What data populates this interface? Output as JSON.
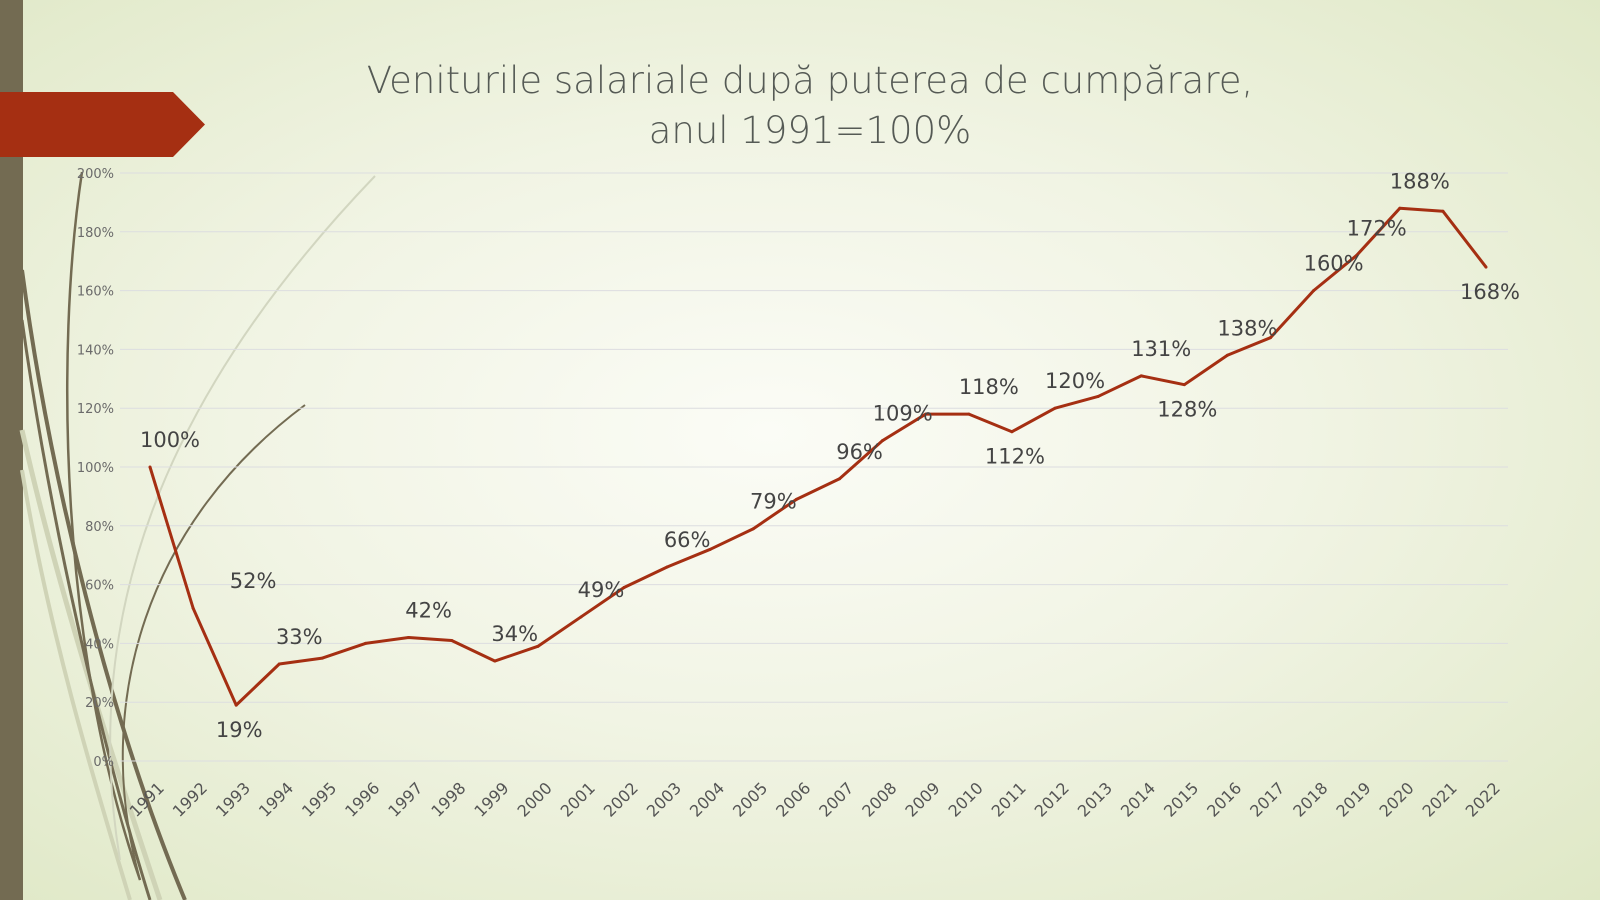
{
  "slide": {
    "colors": {
      "sidebar": "#736b52",
      "banner": "#a52f12",
      "line": "#a52f12",
      "text": "#555a55"
    }
  },
  "chart_data": {
    "type": "line",
    "title": [
      "Veniturile salariale după puterea de cumpărare,",
      "anul 1991=100%"
    ],
    "xlabel": "",
    "ylabel": "",
    "ylim": [
      0,
      200
    ],
    "y_ticks": [
      "0%",
      "20%",
      "40%",
      "60%",
      "80%",
      "100%",
      "120%",
      "140%",
      "160%",
      "180%",
      "200%"
    ],
    "grid": true,
    "legend": "none",
    "categories": [
      "1991",
      "1992",
      "1993",
      "1994",
      "1995",
      "1996",
      "1997",
      "1998",
      "1999",
      "2000",
      "2001",
      "2002",
      "2003",
      "2004",
      "2005",
      "2006",
      "2007",
      "2008",
      "2009",
      "2010",
      "2011",
      "2012",
      "2013",
      "2014",
      "2015",
      "2016",
      "2017",
      "2018",
      "2019",
      "2020",
      "2021",
      "2022"
    ],
    "values": [
      100,
      52,
      19,
      33,
      35,
      40,
      42,
      41,
      34,
      39,
      49,
      59,
      66,
      72,
      79,
      89,
      96,
      109,
      118,
      118,
      112,
      120,
      124,
      131,
      128,
      138,
      144,
      160,
      172,
      188,
      187,
      168
    ],
    "data_labels": [
      {
        "year": "1991",
        "text": "100%",
        "placement": "above"
      },
      {
        "year": "1992",
        "text": "52%",
        "placement": "right"
      },
      {
        "year": "1993",
        "text": "19%",
        "placement": "below"
      },
      {
        "year": "1994",
        "text": "33%",
        "placement": "above"
      },
      {
        "year": "1997",
        "text": "42%",
        "placement": "above"
      },
      {
        "year": "1999",
        "text": "34%",
        "placement": "above"
      },
      {
        "year": "2001",
        "text": "49%",
        "placement": "above"
      },
      {
        "year": "2003",
        "text": "66%",
        "placement": "above"
      },
      {
        "year": "2005",
        "text": "79%",
        "placement": "above"
      },
      {
        "year": "2007",
        "text": "96%",
        "placement": "above"
      },
      {
        "year": "2008",
        "text": "109%",
        "placement": "above"
      },
      {
        "year": "2010",
        "text": "118%",
        "placement": "above"
      },
      {
        "year": "2011",
        "text": "112%",
        "placement": "below"
      },
      {
        "year": "2012",
        "text": "120%",
        "placement": "above"
      },
      {
        "year": "2014",
        "text": "131%",
        "placement": "above"
      },
      {
        "year": "2015",
        "text": "128%",
        "placement": "below"
      },
      {
        "year": "2016",
        "text": "138%",
        "placement": "above"
      },
      {
        "year": "2018",
        "text": "160%",
        "placement": "above"
      },
      {
        "year": "2019",
        "text": "172%",
        "placement": "above"
      },
      {
        "year": "2020",
        "text": "188%",
        "placement": "above"
      },
      {
        "year": "2022",
        "text": "168%",
        "placement": "below"
      }
    ]
  }
}
